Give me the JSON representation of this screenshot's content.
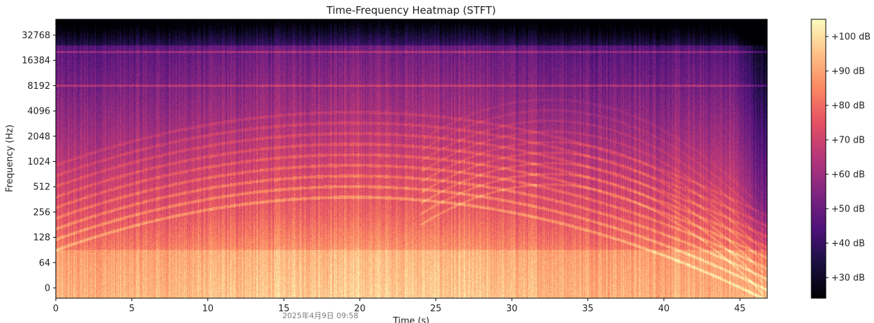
{
  "chart_data": {
    "type": "heatmap",
    "title": "Time-Frequency Heatmap (STFT)",
    "xlabel": "Time (s)",
    "ylabel": "Frequency (Hz)",
    "xlim": [
      0,
      46.8
    ],
    "x_ticks": [
      0,
      5,
      10,
      15,
      20,
      25,
      30,
      35,
      40,
      45
    ],
    "y_scale": "symlog (base 2)",
    "y_ticks": [
      "0",
      "64",
      "128",
      "256",
      "512",
      "1024",
      "2048",
      "4096",
      "8192",
      "16384",
      "32768"
    ],
    "colormap": "magma",
    "colorbar": {
      "range_db": [
        24,
        105
      ],
      "ticks": [
        30,
        40,
        50,
        60,
        70,
        80,
        90,
        100
      ],
      "tick_labels": [
        "+30 dB",
        "+40 dB",
        "+50 dB",
        "+60 dB",
        "+70 dB",
        "+80 dB",
        "+90 dB",
        "+100 dB"
      ]
    },
    "grid": false,
    "watermark": "2025年4月9日 09:58",
    "description_features": {
      "arches": [
        {
          "center_s": 19.5,
          "band": "harmonic arcs peaking near 1.5 kHz and ~4.5 kHz, descending toward both ends"
        },
        {
          "center_s": 32.5,
          "band": "second arch peaking near 2.5-3 kHz"
        }
      ],
      "low_band_level_db": 88,
      "high_band_level_db": 45,
      "tail_quiet_after_s": 44.5
    }
  }
}
